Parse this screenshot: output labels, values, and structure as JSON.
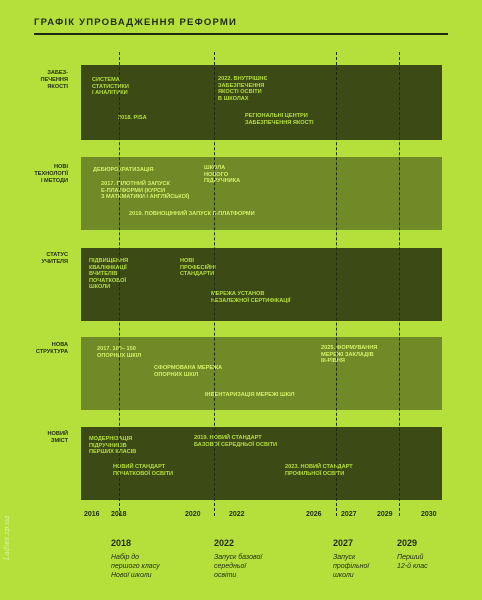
{
  "title": "ГРАФІК УПРОВАДЖЕННЯ РЕФОРМИ",
  "rows": [
    {
      "label": "ЗАБЕЗ-\nПЕЧЕННЯ\nЯКОСТІ",
      "items": [
        "СИСТЕМА\nСТАТИСТИКИ\nІ АНАЛІТИКИ",
        "2022. ВНУТРІШНЄ\nЗАБЕЗПЕЧЕННЯ\nЯКОСТІ ОСВІТИ\nВ ШКОЛАХ",
        "2018. PISA",
        "РЕГІОНАЛЬНІ ЦЕНТРИ\nЗАБЕЗПЕЧЕННЯ ЯКОСТІ"
      ]
    },
    {
      "label": "НОВІ\nТЕХНОЛОГІЇ\nІ МЕТОДИ",
      "items": [
        "ДЕБЮРОКРАТИЗАЦІЯ",
        "ШКОЛА\nНОВОГО\nПІДРУЧНИКА",
        "2017. ПІЛОТНИЙ ЗАПУСК\nЕ-ПЛАТФОРМИ (КУРСИ\nЗ МАТЕМАТИКИ І АНГЛІЙСЬКОЇ)",
        "2019. ПОВНОЦІННИЙ ЗАПУСК Е-ПЛАТФОРМИ"
      ]
    },
    {
      "label": "СТАТУС\nУЧИТЕЛЯ",
      "items": [
        "ПІДВИЩЕННЯ\nКВАЛІФІКАЦІЇ\nВЧИТЕЛІВ\nПОЧАТКОВОЇ\nШКОЛИ",
        "НОВІ\nПРОФЕСІЙНІ\nСТАНДАРТИ",
        "МЕРЕЖА УСТАНОВ\nНЕЗАЛЕЖНОЇ СЕРТИФІКАЦІЇ"
      ]
    },
    {
      "label": "НОВА\nСТРУКТУРА",
      "items": [
        "2017. 100– 150\nОПОРНИХ ШКІЛ",
        "2025. ФОРМУВАННЯ\nМЕРЕЖІ ЗАКЛАДІВ\nIII-РІВНЯ",
        "СФОРМОВАНА МЕРЕЖА\nОПОРНИХ ШКІЛ",
        "ІНВЕНТАРИЗАЦІЯ МЕРЕЖІ ШКІЛ"
      ]
    },
    {
      "label": "НОВИЙ\nЗМІСТ",
      "items": [
        "МОДЕРНІЗАЦІЯ\nПІДРУЧНИКІВ\nПЕРШИХ КЛАСІВ",
        "2019. НОВИЙ СТАНДАРТ\nБАЗОВОЇ СЕРЕДНЬОЇ ОСВІТИ",
        "НОВИЙ СТАНДАРТ\nПОЧАТКОВОЇ ОСВІТИ",
        "2023. НОВИЙ СТАНДАРТ\nПРОФІЛЬНОЇ ОСВІТИ"
      ]
    }
  ],
  "axis_years": [
    "2016",
    "2018",
    "2020",
    "2022",
    "2026",
    "2027",
    "2029",
    "2030"
  ],
  "milestones": [
    {
      "year": "2018",
      "caption": "Набір до\nпершого класу\nНової школи"
    },
    {
      "year": "2022",
      "caption": "Запуск базової\nсередньої\nосвіти"
    },
    {
      "year": "2027",
      "caption": "Запуск\nпрофільної\nшколи"
    },
    {
      "year": "2029",
      "caption": "Перший\n12-й клас"
    }
  ],
  "watermark": "Ladies.zp.ua",
  "colors": {
    "background": "#b5e03b",
    "band_dark": "#3c4a16",
    "band_mid": "#6f8a27",
    "ink": "#1f2a12"
  }
}
